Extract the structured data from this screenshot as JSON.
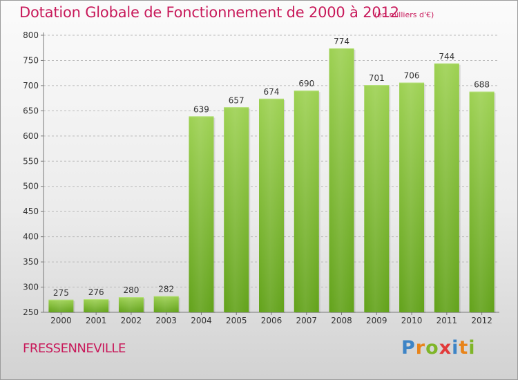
{
  "header": {
    "title": "Dotation Globale de Fonctionnement de 2000 à 2012",
    "unit": "(en milliers d'€)"
  },
  "footer": {
    "commune": "FRESSENNEVILLE",
    "logo": {
      "letters": [
        "P",
        "r",
        "o",
        "x",
        "i",
        "t",
        "i"
      ],
      "colors": [
        "#3d84c6",
        "#e8841a",
        "#7fb528",
        "#e23a3a",
        "#3d84c6",
        "#e8841a",
        "#7fb528"
      ]
    }
  },
  "chart_data": {
    "type": "bar",
    "title": "Dotation Globale de Fonctionnement de 2000 à 2012",
    "categories": [
      "2000",
      "2001",
      "2002",
      "2003",
      "2004",
      "2005",
      "2006",
      "2007",
      "2008",
      "2009",
      "2010",
      "2011",
      "2012"
    ],
    "values": [
      275,
      276,
      280,
      282,
      639,
      657,
      674,
      690,
      774,
      701,
      706,
      744,
      688
    ],
    "ylim": [
      250,
      800
    ],
    "yticks": [
      250,
      300,
      350,
      400,
      450,
      500,
      550,
      600,
      650,
      700,
      750,
      800
    ],
    "grid": true,
    "bar_color": "#8cc53a"
  }
}
